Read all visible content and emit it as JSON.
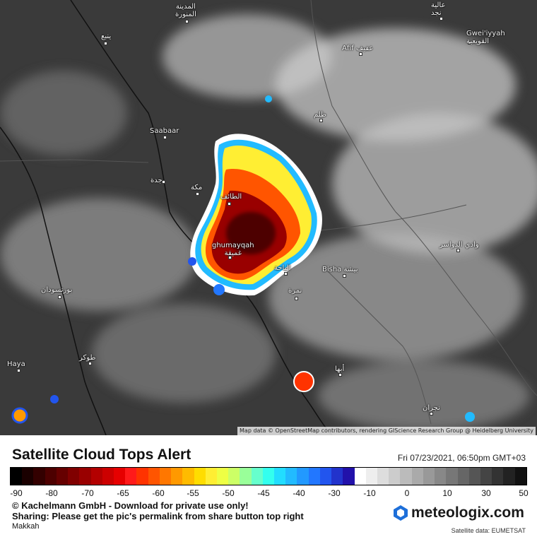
{
  "map": {
    "attribution": "Map data © OpenStreetMap contributors, rendering GIScience Research Group @ Heidelberg University",
    "cities": [
      {
        "id": "madinah",
        "name": "المدينة\nالمنورة"
      },
      {
        "id": "alula",
        "name": "عالية\nنجد"
      },
      {
        "id": "yanbu",
        "name": "ينبع"
      },
      {
        "id": "gweiiyyah",
        "name": "Gwei'iyyah\nالقويعية"
      },
      {
        "id": "afif",
        "name": "Afif عفيف"
      },
      {
        "id": "zalim",
        "name": "ظلم"
      },
      {
        "id": "saabaar",
        "name": "Saabaar"
      },
      {
        "id": "jeddah",
        "name": "جدة"
      },
      {
        "id": "makkah",
        "name": "مكة"
      },
      {
        "id": "taif",
        "name": "الطائف"
      },
      {
        "id": "ghumayqah",
        "name": "ghumayqah\nغميقة"
      },
      {
        "id": "wadi",
        "name": "وادي الدواسر"
      },
      {
        "id": "baha",
        "name": "الباحة"
      },
      {
        "id": "bisha",
        "name": "Bisha بيشة"
      },
      {
        "id": "namirah",
        "name": "نمرة"
      },
      {
        "id": "portsudan",
        "name": "بورتسودان"
      },
      {
        "id": "haya",
        "name": "Haya"
      },
      {
        "id": "tokar",
        "name": "طوكر"
      },
      {
        "id": "abha",
        "name": "أبها"
      },
      {
        "id": "najran",
        "name": "نجران"
      }
    ]
  },
  "footer": {
    "title": "Satellite Cloud Tops Alert",
    "datetime": "Fri 07/23/2021, 06:50pm GMT+03",
    "copyright": "© Kachelmann GmbH - Download for private use only!",
    "sharing": "Sharing: Please get the pic's permalink from share button top right",
    "location": "Makkah",
    "logo_text": "meteologix.com",
    "satellite_data": "Satellite data: EUMETSAT"
  },
  "scale": {
    "labels": [
      "-90",
      "-80",
      "-70",
      "-65",
      "-60",
      "-55",
      "-50",
      "-45",
      "-40",
      "-30",
      "-10",
      "0",
      "10",
      "30",
      "50"
    ],
    "colors": [
      "#000000",
      "#1a0000",
      "#330000",
      "#4d0000",
      "#660000",
      "#800000",
      "#990000",
      "#b30000",
      "#cc0000",
      "#e60000",
      "#ff1a1a",
      "#ff3300",
      "#ff5500",
      "#ff7700",
      "#ff9900",
      "#ffbb00",
      "#ffdd00",
      "#ffee33",
      "#eeff44",
      "#ccff66",
      "#99ff99",
      "#66ffcc",
      "#33ffee",
      "#22ddff",
      "#22bbff",
      "#2299ff",
      "#2277ff",
      "#2255ee",
      "#2233cc",
      "#2211aa",
      "#ffffff",
      "#eeeeee",
      "#dddddd",
      "#cccccc",
      "#bbbbbb",
      "#aaaaaa",
      "#999999",
      "#888888",
      "#777777",
      "#666666",
      "#555555",
      "#444444",
      "#333333",
      "#222222",
      "#111111"
    ]
  }
}
